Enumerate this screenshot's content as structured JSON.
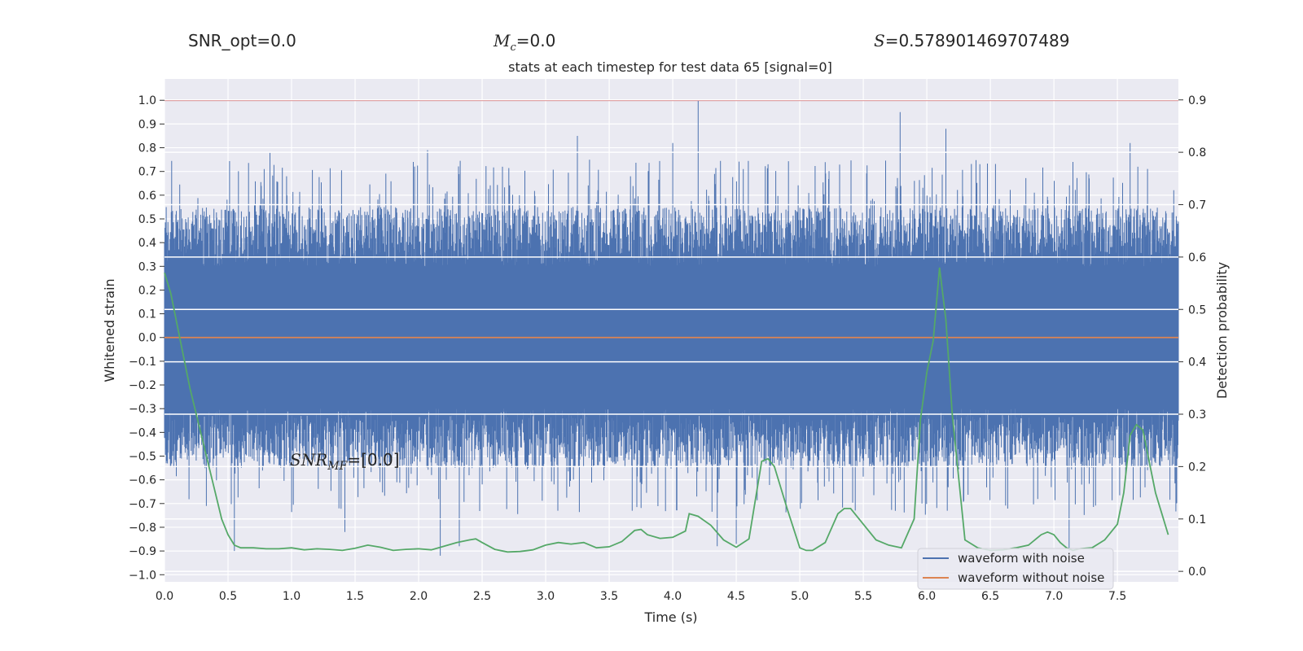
{
  "header": {
    "snr_opt": "SNR_opt=0.0",
    "mc_value": "=0.0",
    "s_value": "=0.578901469707489"
  },
  "colors": {
    "noisy": "#4c72b0",
    "clean": "#dd8452",
    "prob": "#55a868",
    "threshold": "#c44e52",
    "plot_bg": "#eaeaf2",
    "grid": "#ffffff"
  },
  "chart_data": {
    "type": "line",
    "title": "stats at each timestep for test data 65 [signal=0]",
    "xlabel": "Time (s)",
    "ylabel": "Whitened strain",
    "y2label": "Detection probability",
    "xlim": [
      0.0,
      7.98
    ],
    "ylim": [
      -1.03,
      1.09
    ],
    "y2lim": [
      -0.02,
      0.94
    ],
    "x_ticks": [
      "0.0",
      "0.5",
      "1.0",
      "1.5",
      "2.0",
      "2.5",
      "3.0",
      "3.5",
      "4.0",
      "4.5",
      "5.0",
      "5.5",
      "6.0",
      "6.5",
      "7.0",
      "7.5"
    ],
    "y_ticks": [
      "1.0",
      "0.9",
      "0.8",
      "0.7",
      "0.6",
      "0.5",
      "0.4",
      "0.3",
      "0.2",
      "0.1",
      "0.0",
      "−0.1",
      "−0.2",
      "−0.3",
      "−0.4",
      "−0.5",
      "−0.6",
      "−0.7",
      "−0.8",
      "−0.9",
      "−1.0"
    ],
    "y2_ticks": [
      "0.9",
      "0.8",
      "0.7",
      "0.6",
      "0.5",
      "0.4",
      "0.3",
      "0.2",
      "0.1",
      "0.0"
    ],
    "annotation": "=[0.0]",
    "series": [
      {
        "name": "waveform with noise",
        "axis": "left",
        "style": "dense noise, typical range ±0.55, peak 1.0 near t=4.2 s"
      },
      {
        "name": "waveform without noise",
        "axis": "left",
        "value": 0.0
      },
      {
        "axis": "left",
        "value": 1.0
      },
      {
        "axis": "right",
        "x": [
          0.0,
          0.05,
          0.1,
          0.15,
          0.2,
          0.25,
          0.3,
          0.35,
          0.4,
          0.45,
          0.5,
          0.55,
          0.6,
          0.7,
          0.8,
          0.9,
          1.0,
          1.1,
          1.2,
          1.3,
          1.4,
          1.5,
          1.6,
          1.7,
          1.8,
          1.9,
          2.0,
          2.1,
          2.2,
          2.3,
          2.4,
          2.45,
          2.5,
          2.6,
          2.7,
          2.8,
          2.9,
          3.0,
          3.1,
          3.2,
          3.3,
          3.4,
          3.5,
          3.6,
          3.7,
          3.75,
          3.8,
          3.9,
          4.0,
          4.1,
          4.13,
          4.2,
          4.3,
          4.4,
          4.5,
          4.6,
          4.7,
          4.75,
          4.8,
          4.9,
          5.0,
          5.05,
          5.1,
          5.2,
          5.3,
          5.35,
          5.4,
          5.5,
          5.6,
          5.7,
          5.8,
          5.9,
          5.95,
          6.0,
          6.05,
          6.1,
          6.15,
          6.2,
          6.3,
          6.4,
          6.5,
          6.6,
          6.7,
          6.8,
          6.9,
          6.95,
          7.0,
          7.05,
          7.1,
          7.15,
          7.2,
          7.3,
          7.4,
          7.5,
          7.55,
          7.6,
          7.65,
          7.7,
          7.8,
          7.9
        ],
        "y": [
          0.57,
          0.53,
          0.47,
          0.41,
          0.35,
          0.3,
          0.25,
          0.2,
          0.15,
          0.1,
          0.07,
          0.05,
          0.045,
          0.045,
          0.043,
          0.043,
          0.045,
          0.041,
          0.043,
          0.042,
          0.04,
          0.044,
          0.05,
          0.046,
          0.04,
          0.042,
          0.043,
          0.041,
          0.048,
          0.055,
          0.06,
          0.062,
          0.055,
          0.042,
          0.037,
          0.038,
          0.041,
          0.05,
          0.055,
          0.052,
          0.055,
          0.045,
          0.047,
          0.057,
          0.078,
          0.08,
          0.07,
          0.063,
          0.065,
          0.077,
          0.11,
          0.105,
          0.088,
          0.06,
          0.046,
          0.062,
          0.21,
          0.215,
          0.2,
          0.12,
          0.045,
          0.04,
          0.04,
          0.055,
          0.11,
          0.12,
          0.12,
          0.09,
          0.06,
          0.05,
          0.045,
          0.1,
          0.29,
          0.38,
          0.44,
          0.58,
          0.48,
          0.3,
          0.06,
          0.045,
          0.04,
          0.041,
          0.045,
          0.05,
          0.07,
          0.075,
          0.07,
          0.055,
          0.045,
          0.04,
          0.043,
          0.045,
          0.06,
          0.09,
          0.15,
          0.26,
          0.28,
          0.27,
          0.15,
          0.07
        ]
      }
    ]
  }
}
